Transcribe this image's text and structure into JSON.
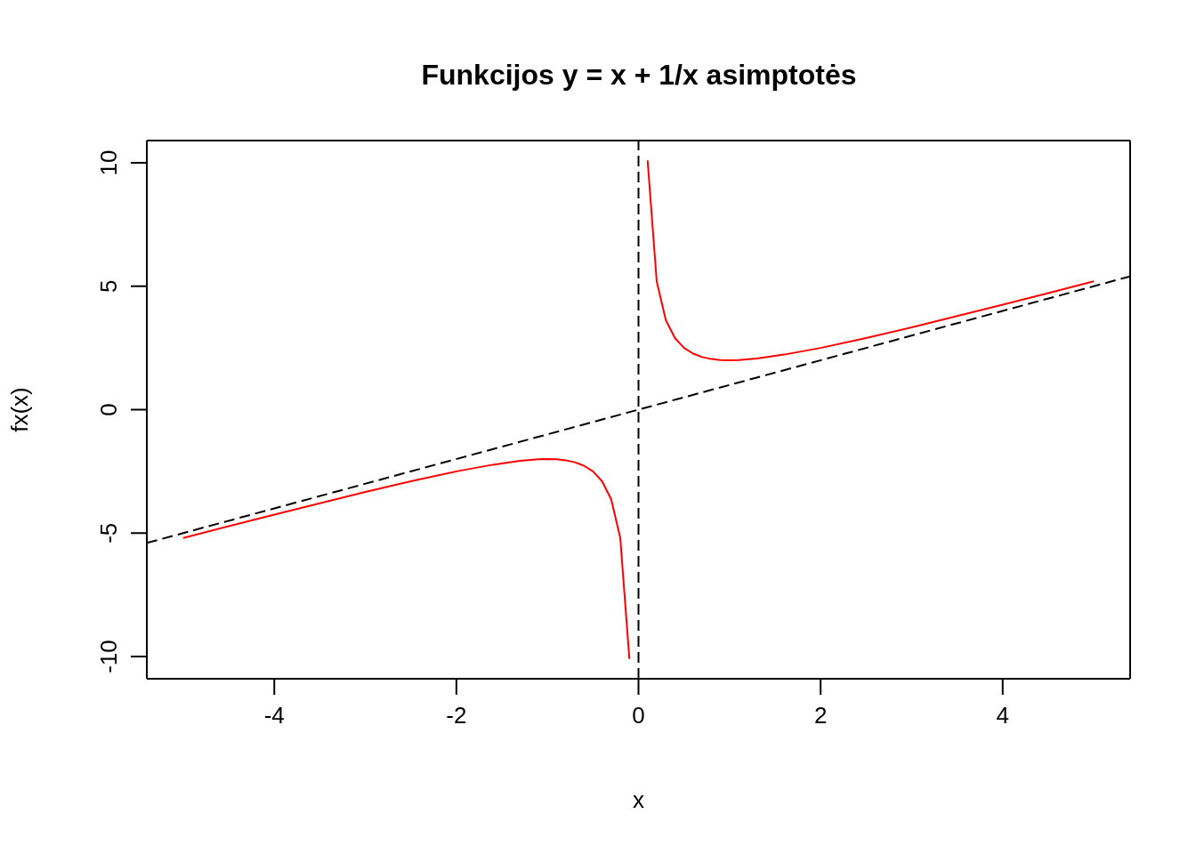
{
  "chart_data": {
    "type": "line",
    "title": "Funkcijos y = x + 1/x asimptotės",
    "xlabel": "x",
    "ylabel": "fx(x)",
    "xlim": [
      -5.4,
      5.4
    ],
    "ylim": [
      -10.9,
      10.9
    ],
    "xticks": [
      -4,
      -2,
      0,
      2,
      4
    ],
    "yticks": [
      -10,
      -5,
      0,
      5,
      10
    ],
    "series": [
      {
        "color": "#ff0000",
        "x": [
          -5,
          -4.5,
          -4,
          -3.5,
          -3,
          -2.5,
          -2,
          -1.6,
          -1.3,
          -1.1,
          -1,
          -0.9,
          -0.8,
          -0.7,
          -0.6,
          -0.5,
          -0.4,
          -0.3,
          -0.2,
          -0.1,
          0,
          0.1,
          0.2,
          0.3,
          0.4,
          0.5,
          0.6,
          0.7,
          0.8,
          0.9,
          1,
          1.1,
          1.3,
          1.6,
          2,
          2.5,
          3,
          3.5,
          4,
          4.5,
          5
        ],
        "values": [
          -5.2,
          -4.72,
          -4.25,
          -3.79,
          -3.33,
          -2.9,
          -2.5,
          -2.23,
          -2.07,
          -2.01,
          -2,
          -2.01,
          -2.05,
          -2.13,
          -2.27,
          -2.5,
          -2.9,
          -3.63,
          -5.2,
          -10.1,
          null,
          10.1,
          5.2,
          3.63,
          2.9,
          2.5,
          2.27,
          2.13,
          2.05,
          2.01,
          2,
          2.01,
          2.07,
          2.23,
          2.5,
          2.9,
          3.33,
          3.79,
          4.25,
          4.72,
          5.2
        ]
      },
      {
        "color": "#000000",
        "line_style": "dashed",
        "x": [
          -5.4,
          5.4
        ],
        "values": [
          -5.4,
          5.4
        ]
      }
    ],
    "ref_lines": [
      {
        "axis": "x",
        "value": 0,
        "color": "#000000",
        "line_style": "dashed"
      }
    ]
  }
}
